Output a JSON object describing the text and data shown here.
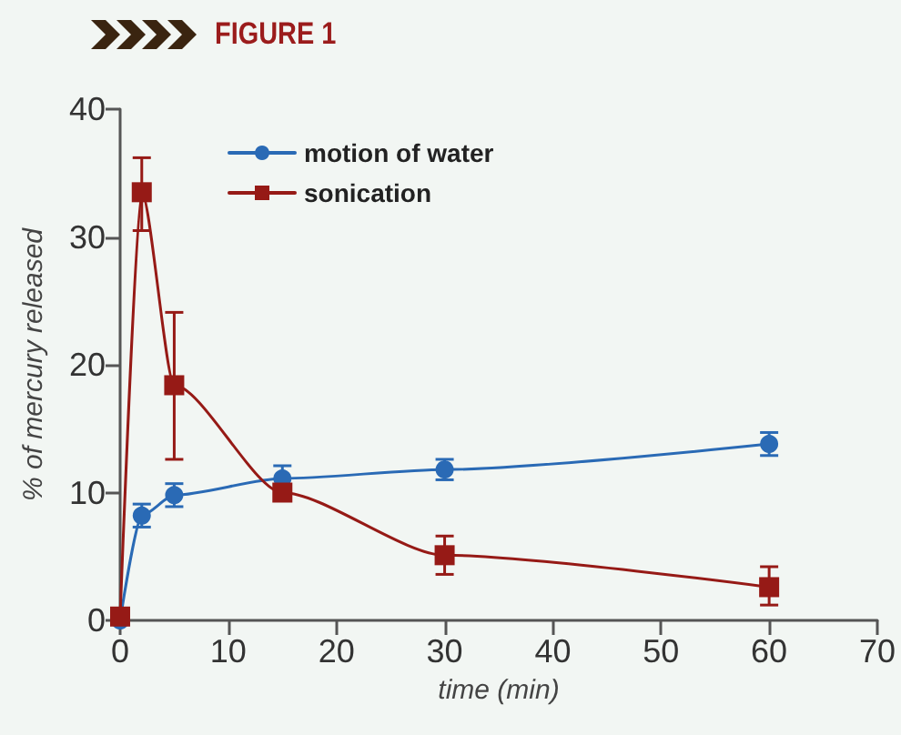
{
  "chart_data": {
    "type": "line",
    "title": "FIGURE 1",
    "xlabel": "time (min)",
    "ylabel": "% of mercury released",
    "x": [
      0,
      2,
      5,
      15,
      30,
      60
    ],
    "series": [
      {
        "name": "motion of water",
        "color": "#2a6ab5",
        "marker": "circle",
        "values": [
          0,
          8.2,
          9.8,
          11.1,
          11.8,
          13.8
        ],
        "errors": [
          null,
          0.9,
          0.9,
          1,
          0.8,
          0.9
        ]
      },
      {
        "name": "sonication",
        "color": "#961a16",
        "marker": "square",
        "values": [
          0.3,
          33.5,
          18.4,
          10,
          5.1,
          2.6
        ],
        "errors": [
          null,
          [
            30.5,
            36.2
          ],
          [
            12.6,
            24.1
          ],
          null,
          [
            3.6,
            6.6
          ],
          [
            1.2,
            4.2
          ]
        ]
      }
    ],
    "xlim": [
      0,
      70
    ],
    "xticks": [
      0,
      10,
      20,
      30,
      40,
      50,
      60,
      70
    ],
    "ylim": [
      0,
      40
    ],
    "yticks": [
      0,
      10,
      20,
      30,
      40
    ],
    "grid": false,
    "legend": "top",
    "line_style": "solid"
  }
}
